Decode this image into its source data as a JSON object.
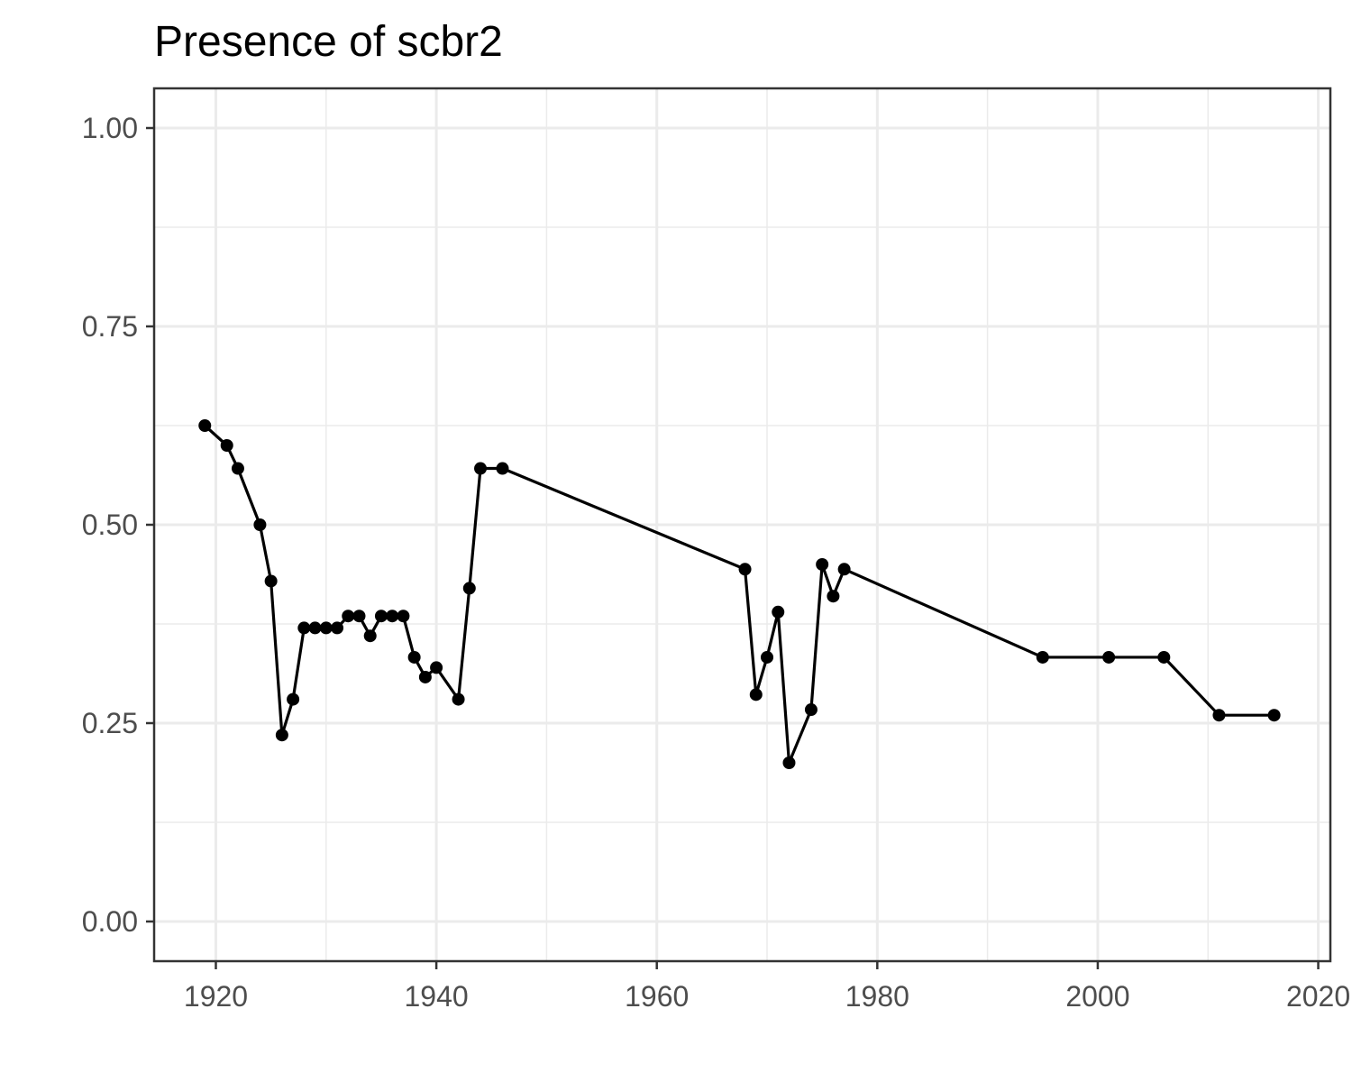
{
  "chart_data": {
    "type": "line",
    "title": "Presence of scbr2",
    "xlabel": "",
    "ylabel": "",
    "xlim": [
      1914.4,
      2021.1
    ],
    "ylim": [
      -0.05,
      1.05
    ],
    "x_major_ticks": [
      1920,
      1940,
      1960,
      1980,
      2000,
      2020
    ],
    "x_tick_labels": [
      "1920",
      "1940",
      "1960",
      "1980",
      "2000",
      "2020"
    ],
    "y_major_ticks": [
      0,
      0.25,
      0.5,
      0.75,
      1.0
    ],
    "y_tick_labels": [
      "0.00",
      "0.25",
      "0.50",
      "0.75",
      "1.00"
    ],
    "grid": true,
    "legend": "none",
    "line_color": "#000000",
    "series": [
      {
        "x": [
          1919,
          1921,
          1922,
          1924,
          1925,
          1926,
          1927,
          1928,
          1929,
          1930,
          1931,
          1932,
          1933,
          1934,
          1935,
          1936,
          1937,
          1938,
          1939,
          1940,
          1942,
          1943,
          1944,
          1946,
          1968,
          1969,
          1970,
          1971,
          1972,
          1974,
          1975,
          1976,
          1977,
          1995,
          2001,
          2006,
          2011,
          2016
        ],
        "y": [
          0.625,
          0.6,
          0.571,
          0.5,
          0.429,
          0.235,
          0.28,
          0.37,
          0.37,
          0.37,
          0.37,
          0.385,
          0.385,
          0.36,
          0.385,
          0.385,
          0.385,
          0.333,
          0.308,
          0.32,
          0.28,
          0.42,
          0.571,
          0.571,
          0.444,
          0.286,
          0.333,
          0.39,
          0.2,
          0.267,
          0.45,
          0.41,
          0.444,
          0.333,
          0.333,
          0.333,
          0.26,
          0.26
        ]
      }
    ]
  }
}
